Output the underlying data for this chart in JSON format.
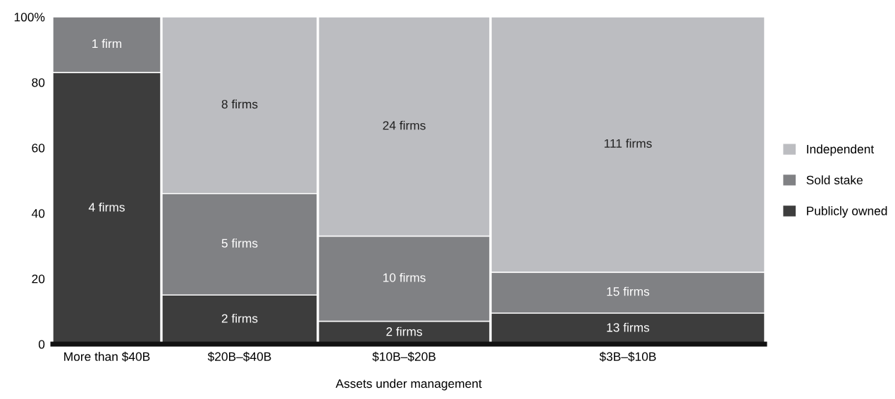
{
  "chart_data": {
    "type": "bar",
    "stacked": true,
    "xlabel": "Assets under management",
    "categories": [
      "More than $40B",
      "$20B–$40B",
      "$10B–$20B",
      "$3B–$10B"
    ],
    "series": [
      {
        "name": "Publicly owned",
        "color": "#3d3d3d",
        "values": [
          83,
          15,
          7,
          9.5
        ]
      },
      {
        "name": "Sold stake",
        "color": "#808184",
        "values": [
          17,
          31,
          26,
          12.5
        ]
      },
      {
        "name": "Independent",
        "color": "#bcbdc1",
        "values": [
          null,
          54,
          67,
          78
        ]
      }
    ],
    "annotations": [
      "4 firms",
      "2 firms",
      "2 firms",
      "13 firms",
      "1 firm",
      "5 firms",
      "10 firms",
      "15 firms",
      "8 firms",
      "24 firms",
      "111 firms"
    ],
    "ylim": [
      0,
      100
    ],
    "yticks": [
      0,
      20,
      40,
      60,
      80,
      {
        "value": 100,
        "label": "100%"
      }
    ],
    "grid": false,
    "legend": "right"
  }
}
